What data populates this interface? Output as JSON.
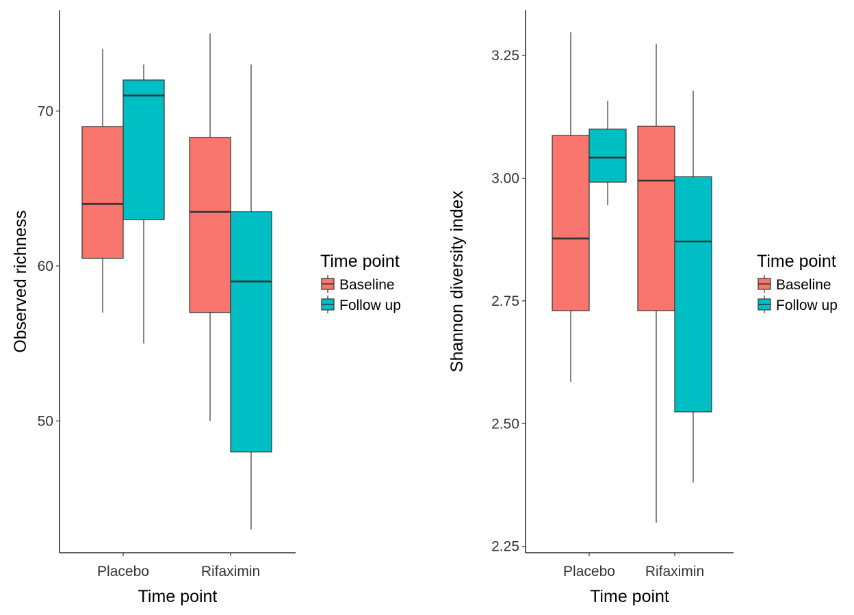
{
  "chart_data": [
    {
      "type": "box",
      "xlabel": "Time point",
      "ylabel": "Observed richness",
      "categories": [
        "Placebo",
        "Rifaximin"
      ],
      "ylim": [
        41.5,
        76.5
      ],
      "yticks": [
        50,
        60,
        70
      ],
      "legend": {
        "title": "Time point",
        "position": "right"
      },
      "series": [
        {
          "name": "Baseline",
          "color": "#F8766D",
          "boxes": [
            {
              "min": 57.0,
              "q1": 60.5,
              "median": 64.0,
              "q3": 69.0,
              "max": 74.0
            },
            {
              "min": 50.0,
              "q1": 57.0,
              "median": 63.5,
              "q3": 68.3,
              "max": 75.0
            }
          ]
        },
        {
          "name": "Follow up",
          "color": "#00BFC4",
          "boxes": [
            {
              "min": 55.0,
              "q1": 63.0,
              "median": 71.0,
              "q3": 72.0,
              "max": 73.0
            },
            {
              "min": 43.0,
              "q1": 48.0,
              "median": 59.0,
              "q3": 63.5,
              "max": 73.0
            }
          ]
        }
      ]
    },
    {
      "type": "box",
      "xlabel": "Time point",
      "ylabel": "Shannon diversity index",
      "categories": [
        "Placebo",
        "Rifaximin"
      ],
      "ylim": [
        2.237,
        3.342
      ],
      "yticks": [
        2.25,
        2.5,
        2.75,
        3.0,
        3.25
      ],
      "yticklabels": [
        "2.25",
        "2.50",
        "2.75",
        "3.00",
        "3.25"
      ],
      "legend": {
        "title": "Time point",
        "position": "right"
      },
      "series": [
        {
          "name": "Baseline",
          "color": "#F8766D",
          "boxes": [
            {
              "min": 2.585,
              "q1": 2.73,
              "median": 2.877,
              "q3": 3.087,
              "max": 3.297
            },
            {
              "min": 2.298,
              "q1": 2.73,
              "median": 2.995,
              "q3": 3.106,
              "max": 3.274
            }
          ]
        },
        {
          "name": "Follow up",
          "color": "#00BFC4",
          "boxes": [
            {
              "min": 2.945,
              "q1": 2.992,
              "median": 3.042,
              "q3": 3.1,
              "max": 3.157
            },
            {
              "min": 2.38,
              "q1": 2.524,
              "median": 2.871,
              "q3": 3.003,
              "max": 3.178
            }
          ]
        }
      ]
    }
  ]
}
